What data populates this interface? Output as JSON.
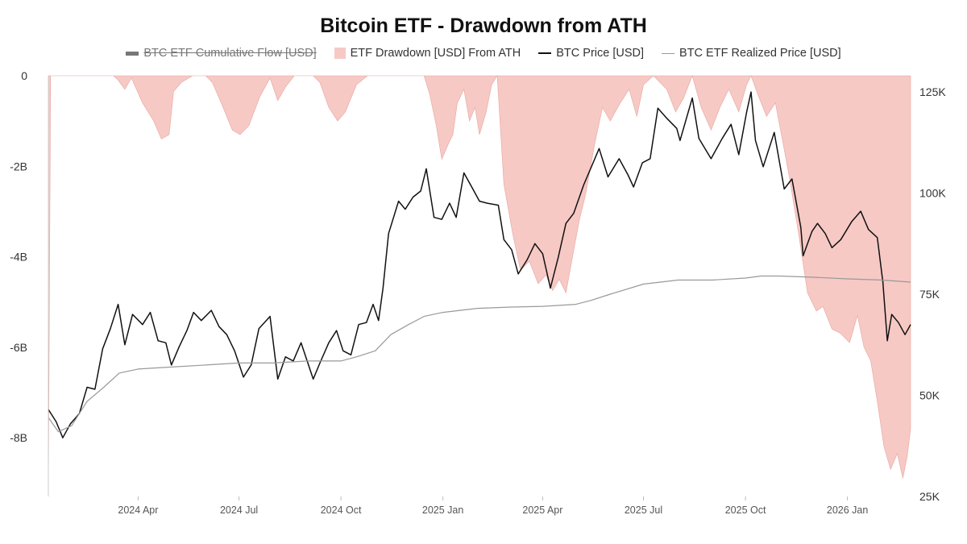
{
  "chart_data": {
    "type": "line",
    "title": "Bitcoin ETF - Drawdown from ATH",
    "legend": [
      {
        "label": "BTC ETF Cumulative Flow [USD]",
        "color": "#777777",
        "hidden": true
      },
      {
        "label": "ETF Drawdown [USD] From ATH",
        "color": "#f6c9c5"
      },
      {
        "label": "BTC Price [USD]",
        "color": "#111111"
      },
      {
        "label": "BTC ETF Realized Price [USD]",
        "color": "#999999"
      }
    ],
    "legend_position": "top-center",
    "grid": false,
    "x_range": [
      "2024-01-11",
      "2026-02-27"
    ],
    "x_ticks": [
      "2024 Apr",
      "2024 Jul",
      "2024 Oct",
      "2025 Jan",
      "2025 Apr",
      "2025 Jul",
      "2025 Oct",
      "2026 Jan"
    ],
    "x_tick_dates": [
      "2024-04-01",
      "2024-07-01",
      "2024-10-01",
      "2025-01-01",
      "2025-04-01",
      "2025-07-01",
      "2025-10-01",
      "2026-01-01"
    ],
    "y_left": {
      "ticks": [
        "0",
        "-2B",
        "-4B",
        "-6B",
        "-8B"
      ],
      "tick_values": [
        0,
        -2000000000,
        -4000000000,
        -6000000000,
        -8000000000
      ],
      "range": [
        -9300000000,
        0
      ]
    },
    "y_right": {
      "ticks": [
        "125K",
        "100K",
        "75K",
        "50K",
        "25K"
      ],
      "tick_values": [
        125000,
        100000,
        75000,
        50000,
        25000
      ],
      "range": [
        25000,
        129000
      ]
    },
    "series": [
      {
        "name": "ETF Drawdown [USD] From ATH",
        "axis": "left",
        "type": "area",
        "color": "#f6c9c5",
        "points": [
          [
            "2024-01-11",
            -9300000000
          ],
          [
            "2024-01-13",
            0
          ],
          [
            "2024-03-10",
            0
          ],
          [
            "2024-03-14",
            -100000000
          ],
          [
            "2024-03-20",
            -300000000
          ],
          [
            "2024-03-26",
            -50000000
          ],
          [
            "2024-04-05",
            -600000000
          ],
          [
            "2024-04-15",
            -1000000000
          ],
          [
            "2024-04-22",
            -1400000000
          ],
          [
            "2024-04-29",
            -1300000000
          ],
          [
            "2024-05-03",
            -350000000
          ],
          [
            "2024-05-10",
            -150000000
          ],
          [
            "2024-05-20",
            0
          ],
          [
            "2024-06-01",
            0
          ],
          [
            "2024-06-07",
            -150000000
          ],
          [
            "2024-06-15",
            -600000000
          ],
          [
            "2024-06-25",
            -1200000000
          ],
          [
            "2024-07-02",
            -1300000000
          ],
          [
            "2024-07-10",
            -1100000000
          ],
          [
            "2024-07-20",
            -450000000
          ],
          [
            "2024-07-29",
            -50000000
          ],
          [
            "2024-08-05",
            -550000000
          ],
          [
            "2024-08-12",
            -250000000
          ],
          [
            "2024-08-20",
            0
          ],
          [
            "2024-09-06",
            0
          ],
          [
            "2024-09-12",
            -150000000
          ],
          [
            "2024-09-20",
            -700000000
          ],
          [
            "2024-09-28",
            -1000000000
          ],
          [
            "2024-10-05",
            -800000000
          ],
          [
            "2024-10-15",
            -200000000
          ],
          [
            "2024-10-25",
            0
          ],
          [
            "2024-12-15",
            0
          ],
          [
            "2024-12-20",
            -400000000
          ],
          [
            "2024-12-26",
            -1100000000
          ],
          [
            "2024-12-31",
            -1850000000
          ],
          [
            "2025-01-06",
            -1500000000
          ],
          [
            "2025-01-10",
            -1300000000
          ],
          [
            "2025-01-14",
            -600000000
          ],
          [
            "2025-01-20",
            -300000000
          ],
          [
            "2025-01-25",
            -1000000000
          ],
          [
            "2025-01-30",
            -700000000
          ],
          [
            "2025-02-03",
            -1300000000
          ],
          [
            "2025-02-09",
            -800000000
          ],
          [
            "2025-02-14",
            -200000000
          ],
          [
            "2025-02-19",
            0
          ],
          [
            "2025-02-25",
            -2400000000
          ],
          [
            "2025-03-05",
            -3500000000
          ],
          [
            "2025-03-12",
            -4300000000
          ],
          [
            "2025-03-20",
            -4100000000
          ],
          [
            "2025-03-28",
            -4600000000
          ],
          [
            "2025-04-04",
            -4400000000
          ],
          [
            "2025-04-10",
            -4750000000
          ],
          [
            "2025-04-16",
            -4500000000
          ],
          [
            "2025-04-22",
            -4800000000
          ],
          [
            "2025-04-28",
            -4000000000
          ],
          [
            "2025-05-04",
            -3200000000
          ],
          [
            "2025-05-10",
            -2600000000
          ],
          [
            "2025-05-18",
            -1500000000
          ],
          [
            "2025-05-25",
            -700000000
          ],
          [
            "2025-06-01",
            -1000000000
          ],
          [
            "2025-06-10",
            -600000000
          ],
          [
            "2025-06-18",
            -300000000
          ],
          [
            "2025-06-25",
            -900000000
          ],
          [
            "2025-07-01",
            -200000000
          ],
          [
            "2025-07-10",
            0
          ],
          [
            "2025-07-22",
            -300000000
          ],
          [
            "2025-07-30",
            -800000000
          ],
          [
            "2025-08-06",
            -500000000
          ],
          [
            "2025-08-14",
            0
          ],
          [
            "2025-08-22",
            -700000000
          ],
          [
            "2025-08-31",
            -1200000000
          ],
          [
            "2025-09-08",
            -700000000
          ],
          [
            "2025-09-16",
            -300000000
          ],
          [
            "2025-09-25",
            -800000000
          ],
          [
            "2025-10-02",
            -200000000
          ],
          [
            "2025-10-06",
            0
          ],
          [
            "2025-10-12",
            -400000000
          ],
          [
            "2025-10-20",
            -900000000
          ],
          [
            "2025-10-28",
            -600000000
          ],
          [
            "2025-11-04",
            -1500000000
          ],
          [
            "2025-11-10",
            -2300000000
          ],
          [
            "2025-11-18",
            -3500000000
          ],
          [
            "2025-11-26",
            -4800000000
          ],
          [
            "2025-12-04",
            -5200000000
          ],
          [
            "2025-12-10",
            -5100000000
          ],
          [
            "2025-12-18",
            -5600000000
          ],
          [
            "2025-12-26",
            -5700000000
          ],
          [
            "2026-01-03",
            -5900000000
          ],
          [
            "2026-01-10",
            -5300000000
          ],
          [
            "2026-01-16",
            -6000000000
          ],
          [
            "2026-01-22",
            -6300000000
          ],
          [
            "2026-01-28",
            -7200000000
          ],
          [
            "2026-02-03",
            -8200000000
          ],
          [
            "2026-02-09",
            -8700000000
          ],
          [
            "2026-02-15",
            -8350000000
          ],
          [
            "2026-02-20",
            -8900000000
          ],
          [
            "2026-02-24",
            -8400000000
          ],
          [
            "2026-02-27",
            -7800000000
          ]
        ]
      },
      {
        "name": "BTC Price [USD]",
        "axis": "right",
        "type": "line",
        "color": "#111111",
        "points": [
          [
            "2024-01-11",
            46500
          ],
          [
            "2024-01-18",
            43500
          ],
          [
            "2024-01-24",
            39500
          ],
          [
            "2024-01-31",
            43000
          ],
          [
            "2024-02-08",
            45500
          ],
          [
            "2024-02-15",
            52000
          ],
          [
            "2024-02-22",
            51500
          ],
          [
            "2024-02-29",
            61500
          ],
          [
            "2024-03-07",
            66500
          ],
          [
            "2024-03-14",
            72500
          ],
          [
            "2024-03-20",
            62500
          ],
          [
            "2024-03-27",
            70000
          ],
          [
            "2024-04-05",
            67500
          ],
          [
            "2024-04-12",
            70500
          ],
          [
            "2024-04-19",
            63500
          ],
          [
            "2024-04-26",
            63000
          ],
          [
            "2024-05-01",
            57500
          ],
          [
            "2024-05-08",
            62000
          ],
          [
            "2024-05-15",
            66000
          ],
          [
            "2024-05-21",
            70500
          ],
          [
            "2024-05-28",
            68500
          ],
          [
            "2024-06-06",
            71000
          ],
          [
            "2024-06-13",
            67000
          ],
          [
            "2024-06-20",
            65000
          ],
          [
            "2024-06-27",
            61000
          ],
          [
            "2024-07-05",
            54500
          ],
          [
            "2024-07-12",
            57500
          ],
          [
            "2024-07-19",
            66500
          ],
          [
            "2024-07-29",
            69500
          ],
          [
            "2024-08-05",
            54000
          ],
          [
            "2024-08-12",
            59500
          ],
          [
            "2024-08-19",
            58500
          ],
          [
            "2024-08-26",
            63000
          ],
          [
            "2024-09-06",
            54000
          ],
          [
            "2024-09-12",
            58000
          ],
          [
            "2024-09-20",
            63000
          ],
          [
            "2024-09-27",
            66000
          ],
          [
            "2024-10-03",
            61000
          ],
          [
            "2024-10-10",
            60000
          ],
          [
            "2024-10-17",
            67500
          ],
          [
            "2024-10-24",
            68000
          ],
          [
            "2024-10-30",
            72500
          ],
          [
            "2024-11-04",
            68500
          ],
          [
            "2024-11-08",
            76500
          ],
          [
            "2024-11-13",
            90000
          ],
          [
            "2024-11-22",
            98000
          ],
          [
            "2024-11-28",
            96000
          ],
          [
            "2024-12-05",
            99000
          ],
          [
            "2024-12-12",
            100500
          ],
          [
            "2024-12-17",
            106000
          ],
          [
            "2024-12-24",
            94000
          ],
          [
            "2024-12-31",
            93500
          ],
          [
            "2025-01-07",
            97500
          ],
          [
            "2025-01-13",
            94000
          ],
          [
            "2025-01-20",
            105000
          ],
          [
            "2025-01-27",
            101500
          ],
          [
            "2025-02-03",
            98000
          ],
          [
            "2025-02-10",
            97500
          ],
          [
            "2025-02-20",
            97000
          ],
          [
            "2025-02-25",
            88500
          ],
          [
            "2025-03-04",
            86000
          ],
          [
            "2025-03-10",
            80000
          ],
          [
            "2025-03-18",
            83500
          ],
          [
            "2025-03-25",
            87500
          ],
          [
            "2025-04-01",
            85000
          ],
          [
            "2025-04-08",
            76500
          ],
          [
            "2025-04-15",
            84000
          ],
          [
            "2025-04-22",
            92500
          ],
          [
            "2025-04-29",
            95000
          ],
          [
            "2025-05-08",
            102000
          ],
          [
            "2025-05-22",
            111000
          ],
          [
            "2025-05-30",
            104000
          ],
          [
            "2025-06-09",
            108500
          ],
          [
            "2025-06-17",
            104500
          ],
          [
            "2025-06-22",
            101500
          ],
          [
            "2025-06-30",
            107500
          ],
          [
            "2025-07-07",
            108500
          ],
          [
            "2025-07-14",
            121000
          ],
          [
            "2025-07-22",
            118500
          ],
          [
            "2025-07-31",
            116000
          ],
          [
            "2025-08-03",
            113000
          ],
          [
            "2025-08-14",
            123500
          ],
          [
            "2025-08-20",
            113500
          ],
          [
            "2025-08-31",
            108500
          ],
          [
            "2025-09-10",
            113500
          ],
          [
            "2025-09-18",
            117000
          ],
          [
            "2025-09-25",
            109500
          ],
          [
            "2025-10-02",
            120000
          ],
          [
            "2025-10-06",
            125000
          ],
          [
            "2025-10-10",
            113000
          ],
          [
            "2025-10-17",
            106500
          ],
          [
            "2025-10-27",
            115000
          ],
          [
            "2025-11-05",
            101000
          ],
          [
            "2025-11-12",
            103500
          ],
          [
            "2025-11-20",
            91500
          ],
          [
            "2025-11-22",
            84500
          ],
          [
            "2025-11-30",
            90500
          ],
          [
            "2025-12-05",
            92500
          ],
          [
            "2025-12-12",
            90000
          ],
          [
            "2025-12-18",
            86500
          ],
          [
            "2025-12-26",
            88500
          ],
          [
            "2026-01-05",
            93000
          ],
          [
            "2026-01-13",
            95500
          ],
          [
            "2026-01-20",
            91000
          ],
          [
            "2026-01-28",
            89000
          ],
          [
            "2026-02-02",
            78000
          ],
          [
            "2026-02-06",
            63500
          ],
          [
            "2026-02-10",
            70000
          ],
          [
            "2026-02-16",
            68000
          ],
          [
            "2026-02-22",
            65000
          ],
          [
            "2026-02-27",
            67500
          ]
        ]
      },
      {
        "name": "BTC ETF Realized Price [USD]",
        "axis": "right",
        "type": "line",
        "color": "#999999",
        "points": [
          [
            "2024-01-11",
            44500
          ],
          [
            "2024-01-20",
            41000
          ],
          [
            "2024-02-01",
            42500
          ],
          [
            "2024-02-15",
            48500
          ],
          [
            "2024-03-01",
            52000
          ],
          [
            "2024-03-15",
            55500
          ],
          [
            "2024-04-01",
            56500
          ],
          [
            "2024-05-01",
            57000
          ],
          [
            "2024-06-01",
            57500
          ],
          [
            "2024-07-01",
            58000
          ],
          [
            "2024-08-01",
            58000
          ],
          [
            "2024-09-01",
            58500
          ],
          [
            "2024-10-01",
            58500
          ],
          [
            "2024-10-15",
            59500
          ],
          [
            "2024-11-01",
            61000
          ],
          [
            "2024-11-15",
            65000
          ],
          [
            "2024-12-01",
            67500
          ],
          [
            "2024-12-15",
            69500
          ],
          [
            "2025-01-01",
            70500
          ],
          [
            "2025-02-01",
            71500
          ],
          [
            "2025-03-01",
            71800
          ],
          [
            "2025-04-01",
            72000
          ],
          [
            "2025-05-01",
            72500
          ],
          [
            "2025-05-15",
            73500
          ],
          [
            "2025-06-01",
            75000
          ],
          [
            "2025-07-01",
            77500
          ],
          [
            "2025-08-01",
            78500
          ],
          [
            "2025-09-01",
            78500
          ],
          [
            "2025-10-01",
            79000
          ],
          [
            "2025-10-15",
            79500
          ],
          [
            "2025-11-01",
            79500
          ],
          [
            "2025-12-01",
            79200
          ],
          [
            "2026-01-01",
            78800
          ],
          [
            "2026-02-01",
            78500
          ],
          [
            "2026-02-27",
            78000
          ]
        ]
      }
    ]
  }
}
